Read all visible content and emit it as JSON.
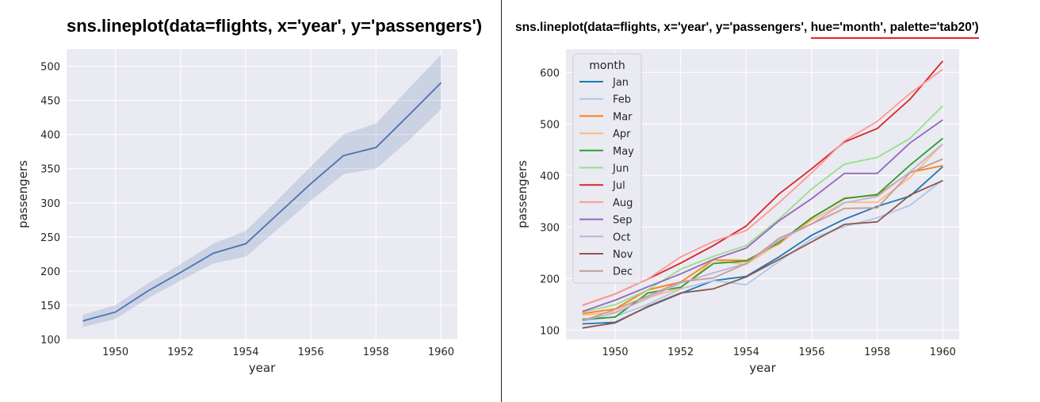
{
  "captions": {
    "left": "sns.lineplot(data=flights, x='year', y='passengers')",
    "right_prefix": "sns.lineplot(data=flights, x='year', y='passengers', ",
    "right_highlight": "hue='month', palette='tab20')"
  },
  "colors": {
    "axes_bg": "#eaeaf2",
    "grid": "#ffffff",
    "mean_line": "#4c72b0",
    "ci_band": "#4c72b0",
    "highlight_underline": "#e0262f"
  },
  "chart_data": [
    {
      "type": "line",
      "xlabel": "year",
      "ylabel": "passengers",
      "xlim": [
        1948.5,
        1960.5
      ],
      "ylim": [
        100,
        525
      ],
      "xticks": [
        1950,
        1952,
        1954,
        1956,
        1958,
        1960
      ],
      "yticks": [
        100,
        150,
        200,
        250,
        300,
        350,
        400,
        450,
        500
      ],
      "grid": true,
      "x": [
        1949,
        1950,
        1951,
        1952,
        1953,
        1954,
        1955,
        1956,
        1957,
        1958,
        1959,
        1960
      ],
      "mean": [
        127,
        140,
        171,
        198,
        226,
        240,
        284,
        328,
        369,
        381,
        428,
        476
      ],
      "ci_low": [
        118,
        130,
        160,
        186,
        211,
        221,
        262,
        303,
        342,
        350,
        391,
        437
      ],
      "ci_high": [
        136,
        150,
        182,
        210,
        240,
        259,
        305,
        353,
        400,
        416,
        467,
        517
      ]
    },
    {
      "type": "line",
      "xlabel": "year",
      "ylabel": "passengers",
      "xlim": [
        1948.5,
        1960.5
      ],
      "ylim": [
        82,
        645
      ],
      "xticks": [
        1950,
        1952,
        1954,
        1956,
        1958,
        1960
      ],
      "yticks": [
        100,
        200,
        300,
        400,
        500,
        600
      ],
      "grid": true,
      "legend": {
        "title": "month",
        "position": "upper-left"
      },
      "x": [
        1949,
        1950,
        1951,
        1952,
        1953,
        1954,
        1955,
        1956,
        1957,
        1958,
        1959,
        1960
      ],
      "series": [
        {
          "name": "Jan",
          "color": "#1f77b4",
          "values": [
            112,
            115,
            145,
            171,
            196,
            204,
            242,
            284,
            315,
            340,
            360,
            417
          ]
        },
        {
          "name": "Feb",
          "color": "#aec7e8",
          "values": [
            118,
            126,
            150,
            180,
            196,
            188,
            233,
            277,
            301,
            318,
            342,
            391
          ]
        },
        {
          "name": "Mar",
          "color": "#ff7f0e",
          "values": [
            132,
            141,
            178,
            193,
            236,
            235,
            267,
            317,
            356,
            362,
            406,
            419
          ]
        },
        {
          "name": "Apr",
          "color": "#ffbb78",
          "values": [
            129,
            135,
            163,
            181,
            235,
            227,
            269,
            313,
            348,
            348,
            396,
            461
          ]
        },
        {
          "name": "May",
          "color": "#2ca02c",
          "values": [
            121,
            125,
            172,
            183,
            229,
            234,
            270,
            318,
            355,
            363,
            420,
            472
          ]
        },
        {
          "name": "Jun",
          "color": "#98df8a",
          "values": [
            135,
            149,
            178,
            218,
            243,
            264,
            315,
            374,
            422,
            435,
            472,
            535
          ]
        },
        {
          "name": "Jul",
          "color": "#d62728",
          "values": [
            148,
            170,
            199,
            230,
            264,
            302,
            364,
            413,
            465,
            491,
            548,
            622
          ]
        },
        {
          "name": "Aug",
          "color": "#ff9896",
          "values": [
            148,
            170,
            199,
            242,
            272,
            293,
            347,
            405,
            467,
            505,
            559,
            606
          ]
        },
        {
          "name": "Sep",
          "color": "#9467bd",
          "values": [
            136,
            158,
            184,
            209,
            237,
            259,
            312,
            355,
            404,
            404,
            463,
            508
          ]
        },
        {
          "name": "Oct",
          "color": "#c5b0d5",
          "values": [
            119,
            133,
            162,
            191,
            211,
            229,
            274,
            306,
            347,
            359,
            407,
            461
          ]
        },
        {
          "name": "Nov",
          "color": "#8c564b",
          "values": [
            104,
            114,
            146,
            172,
            180,
            203,
            237,
            271,
            305,
            310,
            362,
            390
          ]
        },
        {
          "name": "Dec",
          "color": "#c49c94",
          "values": [
            118,
            140,
            166,
            194,
            201,
            229,
            278,
            306,
            336,
            337,
            405,
            432
          ]
        }
      ]
    }
  ]
}
